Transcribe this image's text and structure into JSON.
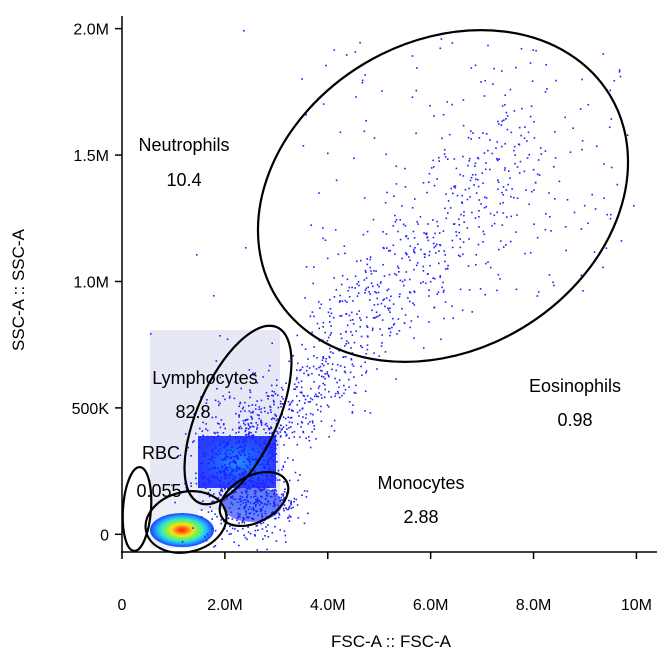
{
  "chart_data": {
    "type": "scatter",
    "title": "",
    "xlabel": "FSC-A :: FSC-A",
    "ylabel": "SSC-A :: SSC-A",
    "xlim": [
      0,
      10400000
    ],
    "ylim": [
      -70000,
      2050000
    ],
    "x_ticks": [
      {
        "value": 0,
        "label": "0"
      },
      {
        "value": 2000000,
        "label": "2.0M"
      },
      {
        "value": 4000000,
        "label": "4.0M"
      },
      {
        "value": 6000000,
        "label": "6.0M"
      },
      {
        "value": 8000000,
        "label": "8.0M"
      },
      {
        "value": 10000000,
        "label": "10M"
      }
    ],
    "y_ticks": [
      {
        "value": 0,
        "label": "0"
      },
      {
        "value": 500000,
        "label": "500K"
      },
      {
        "value": 1000000,
        "label": "1.0M"
      },
      {
        "value": 1500000,
        "label": "1.5M"
      },
      {
        "value": 2000000,
        "label": "2.0M"
      }
    ],
    "point_color": "#1f1fff",
    "density_colors": [
      "#1f3cff",
      "#1fa0ff",
      "#2ee8c8",
      "#7ff04a",
      "#f5e21a",
      "#ff7a10",
      "#ff1a1a"
    ],
    "gates": [
      {
        "name": "Neutrophils",
        "value": "10.4",
        "label_name": "Neutrophils",
        "label_value": "10.4"
      },
      {
        "name": "Eosinophils",
        "value": "0.98",
        "label_name": "Eosinophils",
        "label_value": "0.98"
      },
      {
        "name": "Lymphocytes",
        "value": "82.8",
        "label_name": "Lymphocytes",
        "label_value": "82.8"
      },
      {
        "name": "Monocytes",
        "value": "2.88",
        "label_name": "Monocytes",
        "label_value": "2.88"
      },
      {
        "name": "RBC",
        "value": "0.055",
        "label_name": "RBC",
        "label_value": "0.055"
      }
    ]
  }
}
